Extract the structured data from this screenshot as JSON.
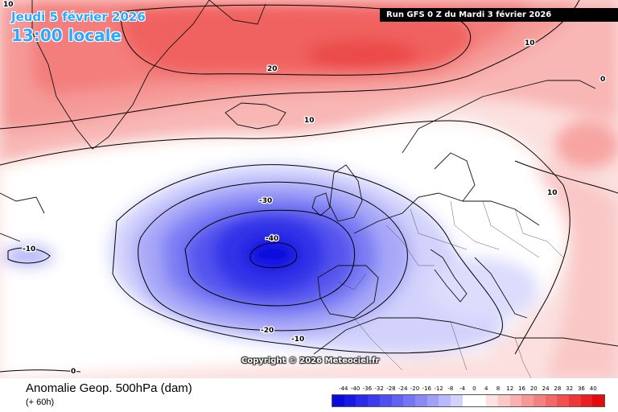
{
  "header": {
    "date": "Jeudi 5 février 2026",
    "local_time": "13:00 locale",
    "run": "Run GFS 0 Z du Mardi 3 février 2026"
  },
  "copyright": "Copyright © 2026 Meteociel.fr",
  "footer": {
    "parameter": "Anomalie Geop. 500hPa (dam)",
    "lead_time": "(+ 60h)"
  },
  "contour_labels": {
    "low_center": "-40",
    "neg30": "-30",
    "neg20": "-20",
    "neg10_south": "-10",
    "neg10_west": "-10",
    "zero_south": "0",
    "pos20_greenland": "20",
    "pos10_greenland": "10",
    "pos10_norway": "10",
    "pos0_east": "0",
    "pos10_mediterranean": "10",
    "corner_10": "10"
  },
  "legend": {
    "ticks": [
      "-44",
      "-40",
      "-36",
      "-32",
      "-28",
      "-24",
      "-20",
      "-16",
      "-12",
      "-8",
      "-4",
      "0",
      "4",
      "8",
      "12",
      "16",
      "20",
      "24",
      "28",
      "32",
      "36",
      "40"
    ],
    "colors": [
      "#0a0ae0",
      "#1818e6",
      "#2a2aea",
      "#3c3cee",
      "#4f4ff1",
      "#6161f3",
      "#7575f5",
      "#8a8af7",
      "#a0a0f9",
      "#b8b8fb",
      "#d2d2fd",
      "#ffffff",
      "#ffffff",
      "#fde0e0",
      "#fbc8c8",
      "#f9b0b0",
      "#f79898",
      "#f58080",
      "#f36868",
      "#f05050",
      "#ee3838",
      "#ea2020",
      "#e60a0a"
    ]
  }
}
